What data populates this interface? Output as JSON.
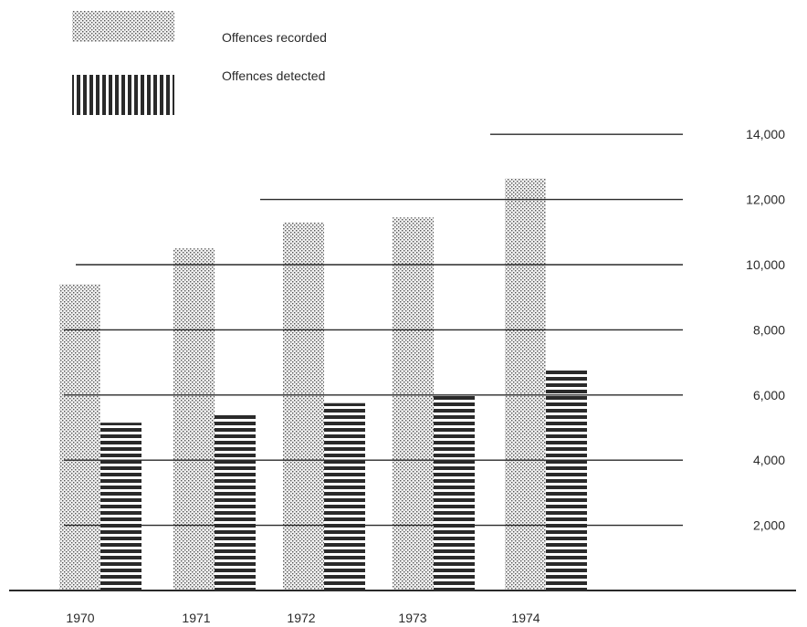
{
  "chart_data": {
    "type": "bar",
    "categories": [
      "1970",
      "1971",
      "1972",
      "1973",
      "1974"
    ],
    "series": [
      {
        "name": "Offences recorded",
        "values": [
          9400,
          10500,
          11300,
          11450,
          12650
        ]
      },
      {
        "name": "Offences detected",
        "values": [
          5150,
          5400,
          5750,
          6000,
          6800
        ]
      }
    ],
    "ylim": [
      0,
      14000
    ],
    "y_ticks": [
      2000,
      4000,
      6000,
      8000,
      10000,
      12000,
      14000
    ],
    "y_tick_labels": [
      "2,000",
      "4,000",
      "6,000",
      "8,000",
      "10,000",
      "12,000",
      "14,000"
    ],
    "y_axis_position": "right",
    "grid": true,
    "legend": "top-left",
    "title": "",
    "xlabel": "",
    "ylabel": "",
    "colors": {
      "ink": "#2a2a2a",
      "background": "#ffffff"
    }
  }
}
